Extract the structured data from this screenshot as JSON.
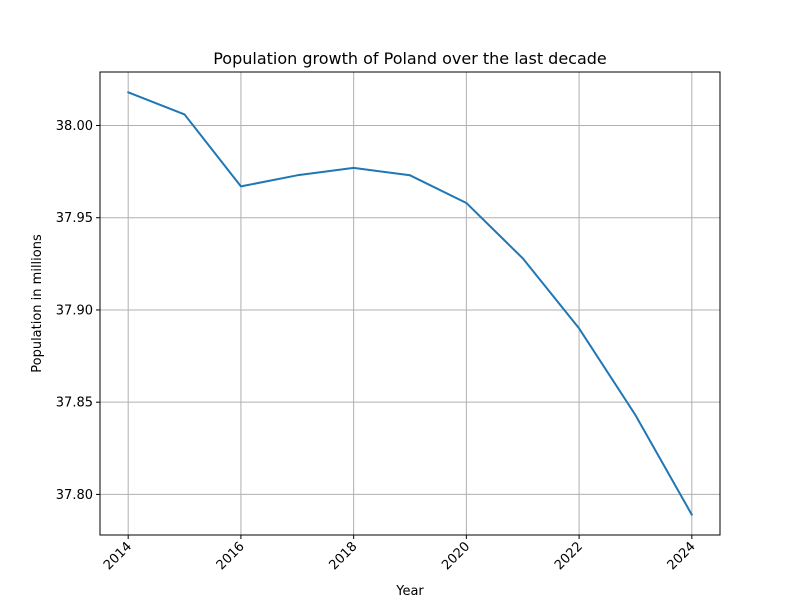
{
  "chart_data": {
    "type": "line",
    "title": "Population growth of Poland over the last decade",
    "xlabel": "Year",
    "ylabel": "Population in millions",
    "x": [
      2014,
      2015,
      2016,
      2017,
      2018,
      2019,
      2020,
      2021,
      2022,
      2023,
      2024
    ],
    "series": [
      {
        "color": "#1f77b4",
        "values": [
          38.018,
          38.006,
          37.967,
          37.973,
          37.977,
          37.973,
          37.958,
          37.928,
          37.89,
          37.843,
          37.789
        ]
      }
    ],
    "xlim": [
      2013.5,
      2024.5
    ],
    "ylim": [
      37.778,
      38.029
    ],
    "xticks": [
      "2014",
      "2016",
      "2018",
      "2020",
      "2022",
      "2024"
    ],
    "yticks": [
      "37.80",
      "37.85",
      "37.90",
      "37.95",
      "38.00"
    ],
    "grid": true,
    "xtick_rotation": "45 degrees"
  }
}
